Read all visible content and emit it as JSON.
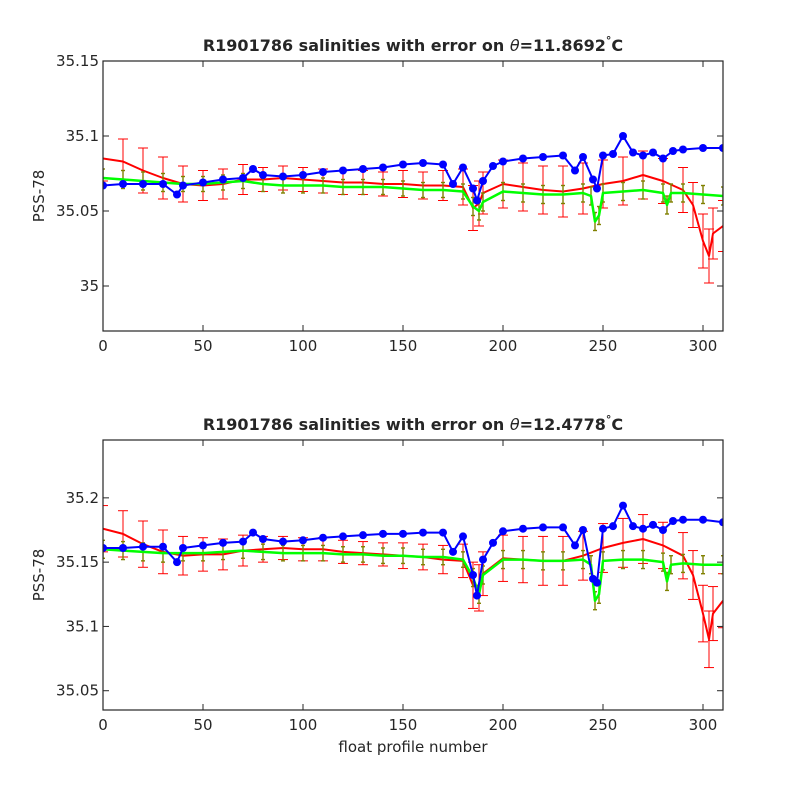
{
  "colors": {
    "float_series": "#0000ff",
    "mapped_series": "#ff0000",
    "mapped_error_bars": "#ff0000",
    "calibrated_series": "#00ff00",
    "calibrated_error_bars": "#808000",
    "axes": "#262626",
    "background": "#ffffff"
  },
  "chart_data": [
    {
      "type": "line",
      "title_prefix": "R1901786 salinities with error on ",
      "title_theta_symbol": "θ",
      "title_value": "=11.8692",
      "title_degree": "°",
      "title_unit": "C",
      "xlabel": "",
      "ylabel": "PSS-78",
      "xlim": [
        0,
        310
      ],
      "ylim": [
        34.97,
        35.15
      ],
      "xticks": [
        0,
        50,
        100,
        150,
        200,
        250,
        300
      ],
      "yticks": [
        35.0,
        35.05,
        35.1,
        35.15
      ],
      "ytick_labels": [
        "35",
        "35.05",
        "35.1",
        "35.15"
      ],
      "grid": false,
      "series": [
        {
          "role": "float",
          "marker": "circle",
          "x": [
            0,
            10,
            20,
            30,
            37,
            40,
            50,
            60,
            70,
            75,
            80,
            90,
            100,
            110,
            120,
            130,
            140,
            150,
            160,
            170,
            175,
            180,
            185,
            187,
            190,
            195,
            200,
            210,
            220,
            230,
            236,
            240,
            245,
            247,
            250,
            255,
            260,
            265,
            270,
            275,
            280,
            285,
            290,
            300,
            310
          ],
          "values": [
            35.067,
            35.068,
            35.068,
            35.068,
            35.061,
            35.067,
            35.069,
            35.071,
            35.072,
            35.078,
            35.074,
            35.073,
            35.074,
            35.076,
            35.077,
            35.078,
            35.079,
            35.081,
            35.082,
            35.081,
            35.068,
            35.079,
            35.065,
            35.057,
            35.07,
            35.08,
            35.083,
            35.085,
            35.086,
            35.087,
            35.077,
            35.086,
            35.071,
            35.065,
            35.087,
            35.088,
            35.1,
            35.089,
            35.087,
            35.089,
            35.085,
            35.09,
            35.091,
            35.092,
            35.092
          ]
        },
        {
          "role": "mapped",
          "x": [
            0,
            10,
            20,
            30,
            40,
            50,
            60,
            70,
            80,
            90,
            100,
            110,
            120,
            130,
            140,
            150,
            160,
            170,
            180,
            185,
            188,
            190,
            200,
            210,
            220,
            230,
            240,
            250,
            260,
            270,
            280,
            290,
            295,
            300,
            303,
            305,
            310
          ],
          "values": [
            35.085,
            35.083,
            35.077,
            35.072,
            35.068,
            35.067,
            35.068,
            35.071,
            35.071,
            35.072,
            35.071,
            35.07,
            35.069,
            35.069,
            35.068,
            35.068,
            35.067,
            35.067,
            35.066,
            35.052,
            35.055,
            35.062,
            35.068,
            35.066,
            35.064,
            35.063,
            35.065,
            35.068,
            35.07,
            35.074,
            35.07,
            35.064,
            35.054,
            35.03,
            35.02,
            35.035,
            35.04
          ],
          "errors": [
            0.015,
            0.015,
            0.015,
            0.014,
            0.012,
            0.01,
            0.01,
            0.01,
            0.008,
            0.008,
            0.008,
            0.008,
            0.008,
            0.008,
            0.008,
            0.009,
            0.009,
            0.01,
            0.012,
            0.015,
            0.015,
            0.014,
            0.016,
            0.016,
            0.016,
            0.017,
            0.017,
            0.016,
            0.016,
            0.016,
            0.015,
            0.015,
            0.015,
            0.018,
            0.018,
            0.017,
            0.017
          ]
        },
        {
          "role": "calibrated",
          "x": [
            0,
            10,
            20,
            30,
            40,
            50,
            60,
            70,
            80,
            90,
            100,
            110,
            120,
            130,
            140,
            150,
            160,
            170,
            180,
            185,
            188,
            190,
            200,
            210,
            220,
            230,
            240,
            244,
            246,
            248,
            250,
            260,
            270,
            280,
            282,
            284,
            290,
            300,
            310
          ],
          "values": [
            35.072,
            35.071,
            35.07,
            35.069,
            35.068,
            35.068,
            35.069,
            35.07,
            35.068,
            35.067,
            35.067,
            35.067,
            35.066,
            35.066,
            35.066,
            35.065,
            35.064,
            35.064,
            35.063,
            35.053,
            35.05,
            35.056,
            35.063,
            35.062,
            35.061,
            35.061,
            35.062,
            35.06,
            35.043,
            35.047,
            35.062,
            35.063,
            35.064,
            35.062,
            35.054,
            35.062,
            35.062,
            35.061,
            35.06
          ],
          "errors": [
            0.006,
            0.006,
            0.006,
            0.006,
            0.005,
            0.005,
            0.005,
            0.005,
            0.005,
            0.005,
            0.005,
            0.005,
            0.005,
            0.005,
            0.005,
            0.005,
            0.005,
            0.005,
            0.005,
            0.006,
            0.006,
            0.006,
            0.006,
            0.006,
            0.006,
            0.006,
            0.006,
            0.006,
            0.006,
            0.006,
            0.006,
            0.006,
            0.006,
            0.006,
            0.006,
            0.006,
            0.006,
            0.006,
            0.006
          ]
        }
      ]
    },
    {
      "type": "line",
      "title_prefix": "R1901786 salinities with error on ",
      "title_theta_symbol": "θ",
      "title_value": "=12.4778",
      "title_degree": "°",
      "title_unit": "C",
      "xlabel": "float profile number",
      "ylabel": "PSS-78",
      "xlim": [
        0,
        310
      ],
      "ylim": [
        35.035,
        35.245
      ],
      "xticks": [
        0,
        50,
        100,
        150,
        200,
        250,
        300
      ],
      "yticks": [
        35.05,
        35.1,
        35.15,
        35.2
      ],
      "ytick_labels": [
        "35.05",
        "35.1",
        "35.15",
        "35.2"
      ],
      "grid": false,
      "series": [
        {
          "role": "float",
          "marker": "circle",
          "x": [
            0,
            10,
            20,
            30,
            37,
            40,
            50,
            60,
            70,
            75,
            80,
            90,
            100,
            110,
            120,
            130,
            140,
            150,
            160,
            170,
            175,
            180,
            185,
            187,
            190,
            195,
            200,
            210,
            220,
            230,
            236,
            240,
            245,
            247,
            250,
            255,
            260,
            265,
            270,
            275,
            280,
            285,
            290,
            300,
            310
          ],
          "values": [
            35.161,
            35.161,
            35.162,
            35.162,
            35.15,
            35.161,
            35.163,
            35.165,
            35.166,
            35.173,
            35.168,
            35.166,
            35.167,
            35.169,
            35.17,
            35.171,
            35.172,
            35.172,
            35.173,
            35.173,
            35.158,
            35.17,
            35.14,
            35.124,
            35.152,
            35.165,
            35.174,
            35.176,
            35.177,
            35.177,
            35.163,
            35.175,
            35.137,
            35.134,
            35.176,
            35.178,
            35.194,
            35.178,
            35.176,
            35.179,
            35.175,
            35.182,
            35.183,
            35.183,
            35.181
          ]
        },
        {
          "role": "mapped",
          "x": [
            0,
            10,
            20,
            30,
            40,
            50,
            60,
            70,
            80,
            90,
            100,
            110,
            120,
            130,
            140,
            150,
            160,
            170,
            180,
            185,
            188,
            190,
            200,
            210,
            220,
            230,
            240,
            250,
            260,
            270,
            280,
            290,
            295,
            300,
            303,
            305,
            310
          ],
          "values": [
            35.176,
            35.172,
            35.164,
            35.158,
            35.155,
            35.156,
            35.156,
            35.159,
            35.16,
            35.161,
            35.16,
            35.16,
            35.158,
            35.157,
            35.156,
            35.155,
            35.154,
            35.152,
            35.151,
            35.132,
            35.13,
            35.141,
            35.153,
            35.152,
            35.151,
            35.151,
            35.155,
            35.161,
            35.165,
            35.168,
            35.163,
            35.155,
            35.14,
            35.11,
            35.09,
            35.11,
            35.12
          ],
          "errors": [
            0.018,
            0.018,
            0.018,
            0.017,
            0.015,
            0.013,
            0.012,
            0.012,
            0.01,
            0.009,
            0.009,
            0.009,
            0.009,
            0.009,
            0.009,
            0.01,
            0.01,
            0.011,
            0.013,
            0.018,
            0.018,
            0.017,
            0.018,
            0.018,
            0.019,
            0.019,
            0.019,
            0.019,
            0.019,
            0.019,
            0.018,
            0.018,
            0.019,
            0.022,
            0.022,
            0.021,
            0.021
          ]
        },
        {
          "role": "calibrated",
          "x": [
            0,
            10,
            20,
            30,
            40,
            50,
            60,
            70,
            80,
            90,
            100,
            110,
            120,
            130,
            140,
            150,
            160,
            170,
            180,
            185,
            188,
            190,
            200,
            210,
            220,
            230,
            240,
            244,
            246,
            248,
            250,
            260,
            270,
            280,
            282,
            284,
            290,
            300,
            310
          ],
          "values": [
            35.16,
            35.159,
            35.158,
            35.157,
            35.157,
            35.157,
            35.158,
            35.159,
            35.158,
            35.157,
            35.157,
            35.157,
            35.156,
            35.156,
            35.155,
            35.155,
            35.154,
            35.154,
            35.152,
            35.138,
            35.125,
            35.14,
            35.152,
            35.152,
            35.151,
            35.151,
            35.152,
            35.148,
            35.12,
            35.125,
            35.151,
            35.152,
            35.152,
            35.15,
            35.135,
            35.148,
            35.149,
            35.148,
            35.148
          ],
          "errors": [
            0.007,
            0.007,
            0.007,
            0.007,
            0.006,
            0.006,
            0.006,
            0.006,
            0.006,
            0.006,
            0.006,
            0.006,
            0.006,
            0.006,
            0.006,
            0.006,
            0.006,
            0.006,
            0.006,
            0.007,
            0.007,
            0.007,
            0.007,
            0.007,
            0.007,
            0.007,
            0.007,
            0.007,
            0.007,
            0.007,
            0.007,
            0.007,
            0.007,
            0.007,
            0.007,
            0.007,
            0.007,
            0.007,
            0.007
          ]
        }
      ]
    }
  ]
}
